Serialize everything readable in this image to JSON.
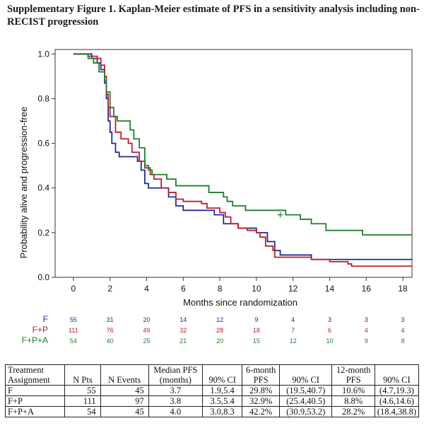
{
  "title": "Supplementary Figure 1. Kaplan-Meier estimate of PFS in a sensitivity analysis including non-RECIST progression",
  "chart_data": {
    "type": "line",
    "subtype": "kaplan-meier step",
    "xlabel": "Months since randomization",
    "ylabel": "Probability alive and progression-free",
    "xlim": [
      -1,
      18.5
    ],
    "ylim": [
      0,
      1.02
    ],
    "xticks": [
      "0",
      "2",
      "4",
      "6",
      "8",
      "10",
      "12",
      "14",
      "16",
      "18"
    ],
    "yticks": [
      "0.0",
      "0.2",
      "0.4",
      "0.6",
      "0.8",
      "1.0"
    ],
    "series": [
      {
        "name": "F",
        "color": "#1f2a9e",
        "points": [
          [
            0,
            1.0
          ],
          [
            0.8,
            1.0
          ],
          [
            1.0,
            0.98
          ],
          [
            1.3,
            0.96
          ],
          [
            1.5,
            0.93
          ],
          [
            1.7,
            0.87
          ],
          [
            1.8,
            0.8
          ],
          [
            1.9,
            0.7
          ],
          [
            2.0,
            0.65
          ],
          [
            2.1,
            0.6
          ],
          [
            2.3,
            0.56
          ],
          [
            2.5,
            0.54
          ],
          [
            3.5,
            0.52
          ],
          [
            3.7,
            0.48
          ],
          [
            3.9,
            0.42
          ],
          [
            4.1,
            0.4
          ],
          [
            5.2,
            0.36
          ],
          [
            5.6,
            0.32
          ],
          [
            6.0,
            0.3
          ],
          [
            7.7,
            0.28
          ],
          [
            8.2,
            0.24
          ],
          [
            9.0,
            0.22
          ],
          [
            10.0,
            0.2
          ],
          [
            10.6,
            0.16
          ],
          [
            11.0,
            0.12
          ],
          [
            11.3,
            0.1
          ],
          [
            13.0,
            0.08
          ],
          [
            18.5,
            0.08
          ]
        ]
      },
      {
        "name": "F+P",
        "color": "#b8222a",
        "points": [
          [
            0,
            1.0
          ],
          [
            0.6,
            1.0
          ],
          [
            0.8,
            0.99
          ],
          [
            1.3,
            0.98
          ],
          [
            1.5,
            0.95
          ],
          [
            1.7,
            0.9
          ],
          [
            1.8,
            0.82
          ],
          [
            1.9,
            0.76
          ],
          [
            2.0,
            0.72
          ],
          [
            2.3,
            0.65
          ],
          [
            2.6,
            0.62
          ],
          [
            3.0,
            0.6
          ],
          [
            3.2,
            0.56
          ],
          [
            3.6,
            0.52
          ],
          [
            3.9,
            0.49
          ],
          [
            4.2,
            0.46
          ],
          [
            4.4,
            0.44
          ],
          [
            4.8,
            0.4
          ],
          [
            5.2,
            0.38
          ],
          [
            5.6,
            0.35
          ],
          [
            6.0,
            0.34
          ],
          [
            7.0,
            0.33
          ],
          [
            7.3,
            0.31
          ],
          [
            8.0,
            0.29
          ],
          [
            8.3,
            0.27
          ],
          [
            8.6,
            0.24
          ],
          [
            9.0,
            0.22
          ],
          [
            9.5,
            0.21
          ],
          [
            10.0,
            0.2
          ],
          [
            10.2,
            0.18
          ],
          [
            10.5,
            0.14
          ],
          [
            10.9,
            0.12
          ],
          [
            11.0,
            0.09
          ],
          [
            13.0,
            0.08
          ],
          [
            14.0,
            0.07
          ],
          [
            15.0,
            0.06
          ],
          [
            15.2,
            0.05
          ],
          [
            18.5,
            0.05
          ]
        ]
      },
      {
        "name": "F+P+A",
        "color": "#1e7f2a",
        "points": [
          [
            0,
            1.0
          ],
          [
            0.5,
            1.0
          ],
          [
            0.8,
            0.98
          ],
          [
            1.1,
            0.96
          ],
          [
            1.4,
            0.92
          ],
          [
            1.7,
            0.88
          ],
          [
            1.8,
            0.83
          ],
          [
            2.0,
            0.76
          ],
          [
            2.2,
            0.72
          ],
          [
            2.4,
            0.7
          ],
          [
            3.1,
            0.66
          ],
          [
            3.3,
            0.62
          ],
          [
            3.6,
            0.58
          ],
          [
            3.9,
            0.5
          ],
          [
            4.1,
            0.48
          ],
          [
            4.3,
            0.46
          ],
          [
            5.1,
            0.44
          ],
          [
            5.6,
            0.41
          ],
          [
            7.4,
            0.38
          ],
          [
            8.2,
            0.36
          ],
          [
            8.4,
            0.34
          ],
          [
            8.7,
            0.32
          ],
          [
            9.4,
            0.3
          ],
          [
            11.6,
            0.28
          ],
          [
            12.4,
            0.26
          ],
          [
            13.0,
            0.24
          ],
          [
            13.8,
            0.21
          ],
          [
            15.8,
            0.19
          ],
          [
            18.5,
            0.19
          ]
        ]
      }
    ],
    "censor_mark": {
      "series": "F+P+A",
      "x": 11.3,
      "y": 0.28
    }
  },
  "risk_table": {
    "times": [
      "0",
      "2",
      "4",
      "6",
      "8",
      "10",
      "12",
      "14",
      "16",
      "18"
    ],
    "rows": [
      {
        "label": "F",
        "color": "#1f2a9e",
        "values": [
          "55",
          "31",
          "20",
          "14",
          "12",
          "9",
          "4",
          "3",
          "3",
          "3"
        ]
      },
      {
        "label": "F+P",
        "color": "#b8222a",
        "values": [
          "111",
          "76",
          "49",
          "32",
          "28",
          "18",
          "7",
          "6",
          "4",
          "4"
        ]
      },
      {
        "label": "F+P+A",
        "color": "#1e7f2a",
        "values": [
          "54",
          "40",
          "25",
          "21",
          "20",
          "15",
          "12",
          "10",
          "9",
          "8"
        ]
      }
    ]
  },
  "summary_table": {
    "headers": {
      "assignment": "Treatment Assignment",
      "n_pts": "N Pts",
      "n_events": "N Events",
      "median": "Median PFS (months)",
      "ci1": "90% CI",
      "m6": "6-month PFS",
      "ci2": "90% CI",
      "m12": "12-month PFS",
      "ci3": "90% CI"
    },
    "rows": [
      {
        "assignment": "F",
        "n_pts": "55",
        "n_events": "45",
        "median": "3.7",
        "ci1": "1.9,5.4",
        "m6": "29.8%",
        "ci2": "(19.5,40.7)",
        "m12": "10.6%",
        "ci3": "(4.7,19.3)"
      },
      {
        "assignment": "F+P",
        "n_pts": "111",
        "n_events": "97",
        "median": "3.8",
        "ci1": "3.5,5.4",
        "m6": "32.9%",
        "ci2": "(25.4,40.5)",
        "m12": "8.8%",
        "ci3": "(4.6,14.6)"
      },
      {
        "assignment": "F+P+A",
        "n_pts": "54",
        "n_events": "45",
        "median": "4.0",
        "ci1": "3.0,8.3",
        "m6": "42.2%",
        "ci2": "(30.9,53.2)",
        "m12": "28.2%",
        "ci3": "(18.4,38.8)"
      }
    ]
  }
}
